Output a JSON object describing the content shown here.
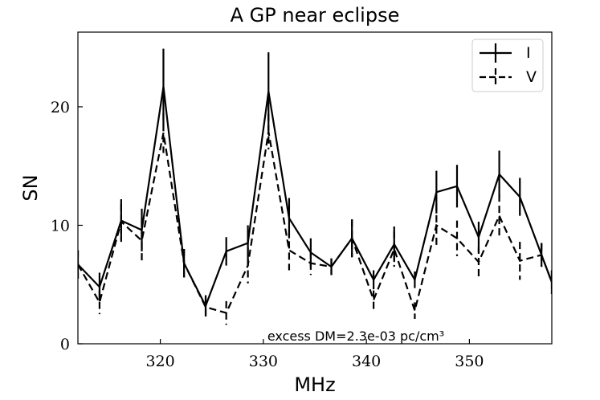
{
  "chart_data": {
    "type": "line",
    "title": "A GP near eclipse",
    "xlabel": "MHz",
    "ylabel": "SN",
    "xlim": [
      312,
      358
    ],
    "ylim": [
      0,
      26.3
    ],
    "xticks": [
      320,
      330,
      340,
      350
    ],
    "yticks": [
      0,
      10,
      20
    ],
    "grid": false,
    "legend_position": "top-right",
    "annotation": "excess DM=2.3e-03 pc/cm³",
    "x": [
      312.0,
      314.1,
      316.2,
      318.2,
      320.3,
      322.3,
      324.4,
      326.4,
      328.5,
      330.5,
      332.5,
      334.6,
      336.6,
      338.6,
      340.7,
      342.7,
      344.7,
      346.8,
      348.8,
      350.9,
      352.9,
      354.9,
      357.0,
      358.0
    ],
    "series": [
      {
        "name": "I",
        "style": "solid",
        "color": "#000000",
        "values": [
          6.7,
          4.8,
          10.4,
          9.6,
          21.7,
          6.8,
          3.2,
          7.8,
          8.5,
          21.3,
          10.6,
          7.7,
          6.5,
          8.9,
          5.4,
          8.4,
          5.4,
          12.8,
          13.3,
          9.0,
          14.3,
          12.4,
          7.5,
          5.2
        ],
        "errors": [
          1.2,
          1.2,
          1.8,
          1.8,
          3.2,
          1.2,
          0.9,
          1.2,
          1.5,
          3.3,
          1.7,
          1.2,
          0.7,
          1.6,
          0.8,
          1.5,
          0.7,
          1.8,
          1.8,
          1.3,
          2.0,
          1.6,
          1.0,
          1.0
        ]
      },
      {
        "name": "V",
        "style": "dashed",
        "color": "#000000",
        "values": [
          6.7,
          3.5,
          10.3,
          8.7,
          17.8,
          6.8,
          3.1,
          2.6,
          6.6,
          17.9,
          7.9,
          6.8,
          6.5,
          8.9,
          3.7,
          8.0,
          2.8,
          10.0,
          8.9,
          6.9,
          10.8,
          7.0,
          7.5,
          5.2
        ],
        "errors": [
          1.2,
          1.0,
          1.5,
          1.8,
          1.7,
          1.2,
          0.8,
          1.0,
          1.5,
          1.5,
          1.7,
          1.0,
          0.7,
          1.6,
          0.8,
          1.5,
          0.7,
          1.8,
          1.5,
          1.3,
          1.8,
          1.6,
          1.0,
          1.0
        ]
      }
    ]
  }
}
